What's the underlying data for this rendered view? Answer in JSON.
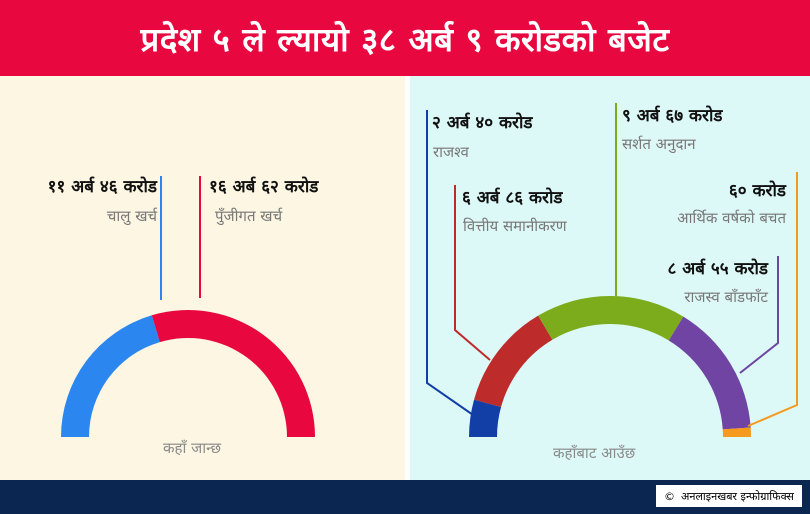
{
  "title": "प्रदेश ५ ले ल्यायो ३८ अर्ब ९ करोडको बजेट",
  "credit": "अनलाइनखबर इन्फोग्राफिक्स",
  "chart_data": [
    {
      "type": "pie",
      "caption": "कहाँ जान्छ",
      "slices": [
        {
          "value_label": "११ अर्ब ४६ करोड",
          "category": "चालु खर्च",
          "value": 11.46,
          "color": "#2b86f0"
        },
        {
          "value_label": "१६ अर्ब ६२ करोड",
          "category": "पुँजीगत खर्च",
          "value": 16.62,
          "color": "#e8073f"
        }
      ]
    },
    {
      "type": "pie",
      "caption": "कहाँबाट आउँछ",
      "slices": [
        {
          "value_label": "२ अर्ब ४० करोड",
          "category": "राजश्व",
          "value": 2.4,
          "color": "#123fa6"
        },
        {
          "value_label": "६ अर्ब ८६ करोड",
          "category": "वित्तीय समानीकरण",
          "value": 6.86,
          "color": "#be2b2b"
        },
        {
          "value_label": "९ अर्ब ६७ करोड",
          "category": "सर्शत अनुदान",
          "value": 9.67,
          "color": "#7cac1c"
        },
        {
          "value_label": "८ अर्ब ५५ करोड",
          "category": "राजस्व बाँडफाँट",
          "value": 8.55,
          "color": "#6f44a2"
        },
        {
          "value_label": "६० करोड",
          "category": "आर्थिक वर्षको बचत",
          "value": 0.6,
          "color": "#f59a1f"
        }
      ]
    }
  ]
}
